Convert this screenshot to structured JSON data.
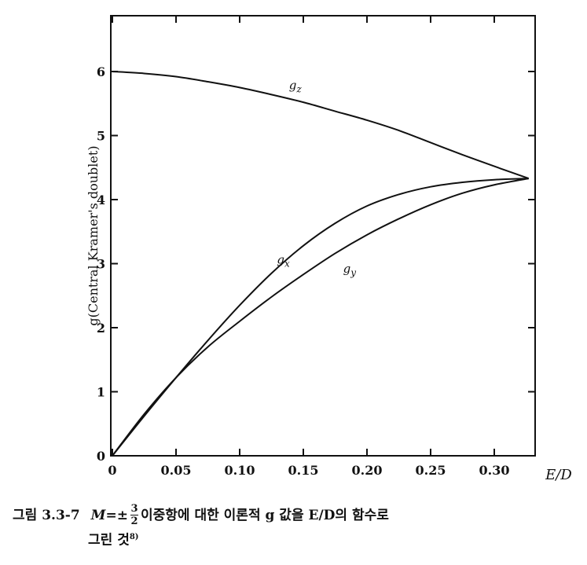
{
  "chart_data": {
    "type": "line",
    "xlabel": "E/D",
    "ylabel": "g(Central Kramer's doublet)",
    "xlim": [
      0,
      0.35
    ],
    "ylim": [
      0,
      7
    ],
    "x_ticks": [
      0,
      0.05,
      0.1,
      0.15,
      0.2,
      0.25,
      0.3
    ],
    "x_tick_labels": [
      "0",
      "0.05",
      "0.10",
      "0.15",
      "0.20",
      "0.25",
      "0.30"
    ],
    "y_ticks": [
      0,
      1,
      2,
      3,
      4,
      5,
      6
    ],
    "y_tick_labels": [
      "0",
      "1",
      "2",
      "3",
      "4",
      "5",
      "6"
    ],
    "grid": false,
    "series": [
      {
        "name": "gz",
        "label": "g",
        "subscript": "z",
        "x": [
          0,
          0.025,
          0.05,
          0.075,
          0.1,
          0.125,
          0.15,
          0.175,
          0.2,
          0.225,
          0.25,
          0.275,
          0.3,
          0.327
        ],
        "y": [
          6.0,
          5.97,
          5.92,
          5.84,
          5.75,
          5.64,
          5.52,
          5.38,
          5.24,
          5.08,
          4.89,
          4.7,
          4.52,
          4.33
        ]
      },
      {
        "name": "gx",
        "label": "g",
        "subscript": "x",
        "x": [
          0,
          0.025,
          0.05,
          0.075,
          0.1,
          0.125,
          0.15,
          0.175,
          0.2,
          0.225,
          0.25,
          0.275,
          0.3,
          0.327
        ],
        "y": [
          0,
          0.62,
          1.22,
          1.8,
          2.35,
          2.85,
          3.28,
          3.63,
          3.9,
          4.08,
          4.2,
          4.27,
          4.31,
          4.33
        ]
      },
      {
        "name": "gy",
        "label": "g",
        "subscript": "y",
        "x": [
          0,
          0.025,
          0.05,
          0.075,
          0.1,
          0.125,
          0.15,
          0.175,
          0.2,
          0.225,
          0.25,
          0.275,
          0.3,
          0.327
        ],
        "y": [
          0,
          0.65,
          1.22,
          1.7,
          2.1,
          2.48,
          2.83,
          3.16,
          3.45,
          3.7,
          3.92,
          4.1,
          4.23,
          4.33
        ]
      }
    ]
  },
  "caption": {
    "number": "그림 3.3-7",
    "prefix": "M=±",
    "frac_num": "3",
    "frac_den": "2",
    "text": " 이중항에 대한 이론적 g 값을 E/D의 함수로",
    "line2": "그린 것",
    "ref": "8)"
  }
}
